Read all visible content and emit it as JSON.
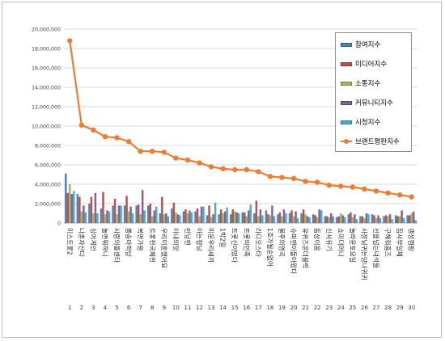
{
  "chart_data": {
    "type": "bar",
    "ylim": [
      0,
      20000000
    ],
    "yticks": [
      "0",
      "2,000,000",
      "4,000,000",
      "6,000,000",
      "8,000,000",
      "10,000,000",
      "12,000,000",
      "14,000,000",
      "16,000,000",
      "18,000,000",
      "20,000,000"
    ],
    "ytick_values": [
      0,
      2000000,
      4000000,
      6000000,
      8000000,
      10000000,
      12000000,
      14000000,
      16000000,
      18000000,
      20000000
    ],
    "grid": true,
    "legend_position": "top-right",
    "categories": [
      "미스트롯2",
      "나혼자산다",
      "싱어게인",
      "놀면뭐하니",
      "사랑의콜센타",
      "뽕숭아학당",
      "복면가왕",
      "트롯전국체전",
      "우리이혼했어요",
      "아내의맛",
      "런닝맨",
      "아는형님",
      "미운우리새끼",
      "1박2일",
      "트롯신이떴다",
      "트롯의민족",
      "라디오스타",
      "1호가될순없어",
      "불후의명곡",
      "슈퍼맨이돌아왔다",
      "유퀴즈온더블럭",
      "동상이몽",
      "신서유기",
      "쇼미더머니",
      "놀라운토요일",
      "사장님귀는당나귀귀",
      "선을넘는녀석들",
      "구해줘홈즈",
      "집사부일체",
      "갬성캠핑"
    ],
    "ranks": [
      "1",
      "2",
      "3",
      "4",
      "5",
      "6",
      "7",
      "8",
      "9",
      "10",
      "11",
      "12",
      "13",
      "14",
      "15",
      "16",
      "17",
      "18",
      "19",
      "20",
      "21",
      "22",
      "23",
      "24",
      "25",
      "26",
      "27",
      "28",
      "29",
      "30"
    ],
    "series": [
      {
        "name": "참여지수",
        "color": "#4f81bd",
        "type": "bar",
        "values": [
          5100000,
          3000000,
          2000000,
          1500000,
          1800000,
          1800000,
          1800000,
          1800000,
          1000000,
          1500000,
          1200000,
          1200000,
          800000,
          900000,
          900000,
          1100000,
          1000000,
          1300000,
          900000,
          1000000,
          1000000,
          900000,
          700000,
          600000,
          900000,
          700000,
          900000,
          700000,
          800000,
          800000
        ]
      },
      {
        "name": "미디어지수",
        "color": "#c0504d",
        "type": "bar",
        "values": [
          3100000,
          2700000,
          2700000,
          3200000,
          2500000,
          2800000,
          1900000,
          2000000,
          2700000,
          2100000,
          1400000,
          1500000,
          1800000,
          1400000,
          1400000,
          1100000,
          2300000,
          900000,
          1100000,
          1300000,
          1400000,
          800000,
          700000,
          700000,
          1100000,
          700000,
          800000,
          800000,
          700000,
          800000
        ]
      },
      {
        "name": "소통지수",
        "color": "#9bbb59",
        "type": "bar",
        "values": [
          4000000,
          1200000,
          1000000,
          900000,
          900000,
          1200000,
          900000,
          700000,
          900000,
          1100000,
          1000000,
          700000,
          600000,
          1000000,
          1200000,
          700000,
          700000,
          800000,
          700000,
          700000,
          900000,
          600000,
          600000,
          1000000,
          600000,
          500000,
          500000,
          700000,
          700000,
          1000000
        ]
      },
      {
        "name": "커뮤니티지수",
        "color": "#8064a2",
        "type": "bar",
        "values": [
          3000000,
          1800000,
          3100000,
          1300000,
          1800000,
          1700000,
          3400000,
          1300000,
          1000000,
          900000,
          1300000,
          1700000,
          900000,
          1200000,
          1100000,
          1300000,
          1400000,
          1800000,
          1400000,
          1200000,
          700000,
          1400000,
          1000000,
          800000,
          900000,
          1000000,
          800000,
          900000,
          1300000,
          1200000
        ]
      },
      {
        "name": "시청지수",
        "color": "#4bacc6",
        "type": "bar",
        "values": [
          3300000,
          1100000,
          1000000,
          1200000,
          1800000,
          1000000,
          1300000,
          1700000,
          700000,
          800000,
          1100000,
          1700000,
          2100000,
          1600000,
          1000000,
          1900000,
          800000,
          700000,
          1000000,
          500000,
          600000,
          1300000,
          700000,
          600000,
          400000,
          900000,
          500000,
          400000,
          500000,
          300000
        ]
      },
      {
        "name": "브랜드평판지수",
        "color": "#ed7d31",
        "type": "line",
        "values": [
          18800000,
          10100000,
          9600000,
          8900000,
          8800000,
          8400000,
          7400000,
          7400000,
          7300000,
          6700000,
          6500000,
          6200000,
          5800000,
          5600000,
          5500000,
          5500000,
          5300000,
          4800000,
          4700000,
          4600000,
          4300000,
          4200000,
          3900000,
          3800000,
          3700000,
          3500000,
          3300000,
          3100000,
          2900000,
          2700000
        ]
      }
    ]
  }
}
